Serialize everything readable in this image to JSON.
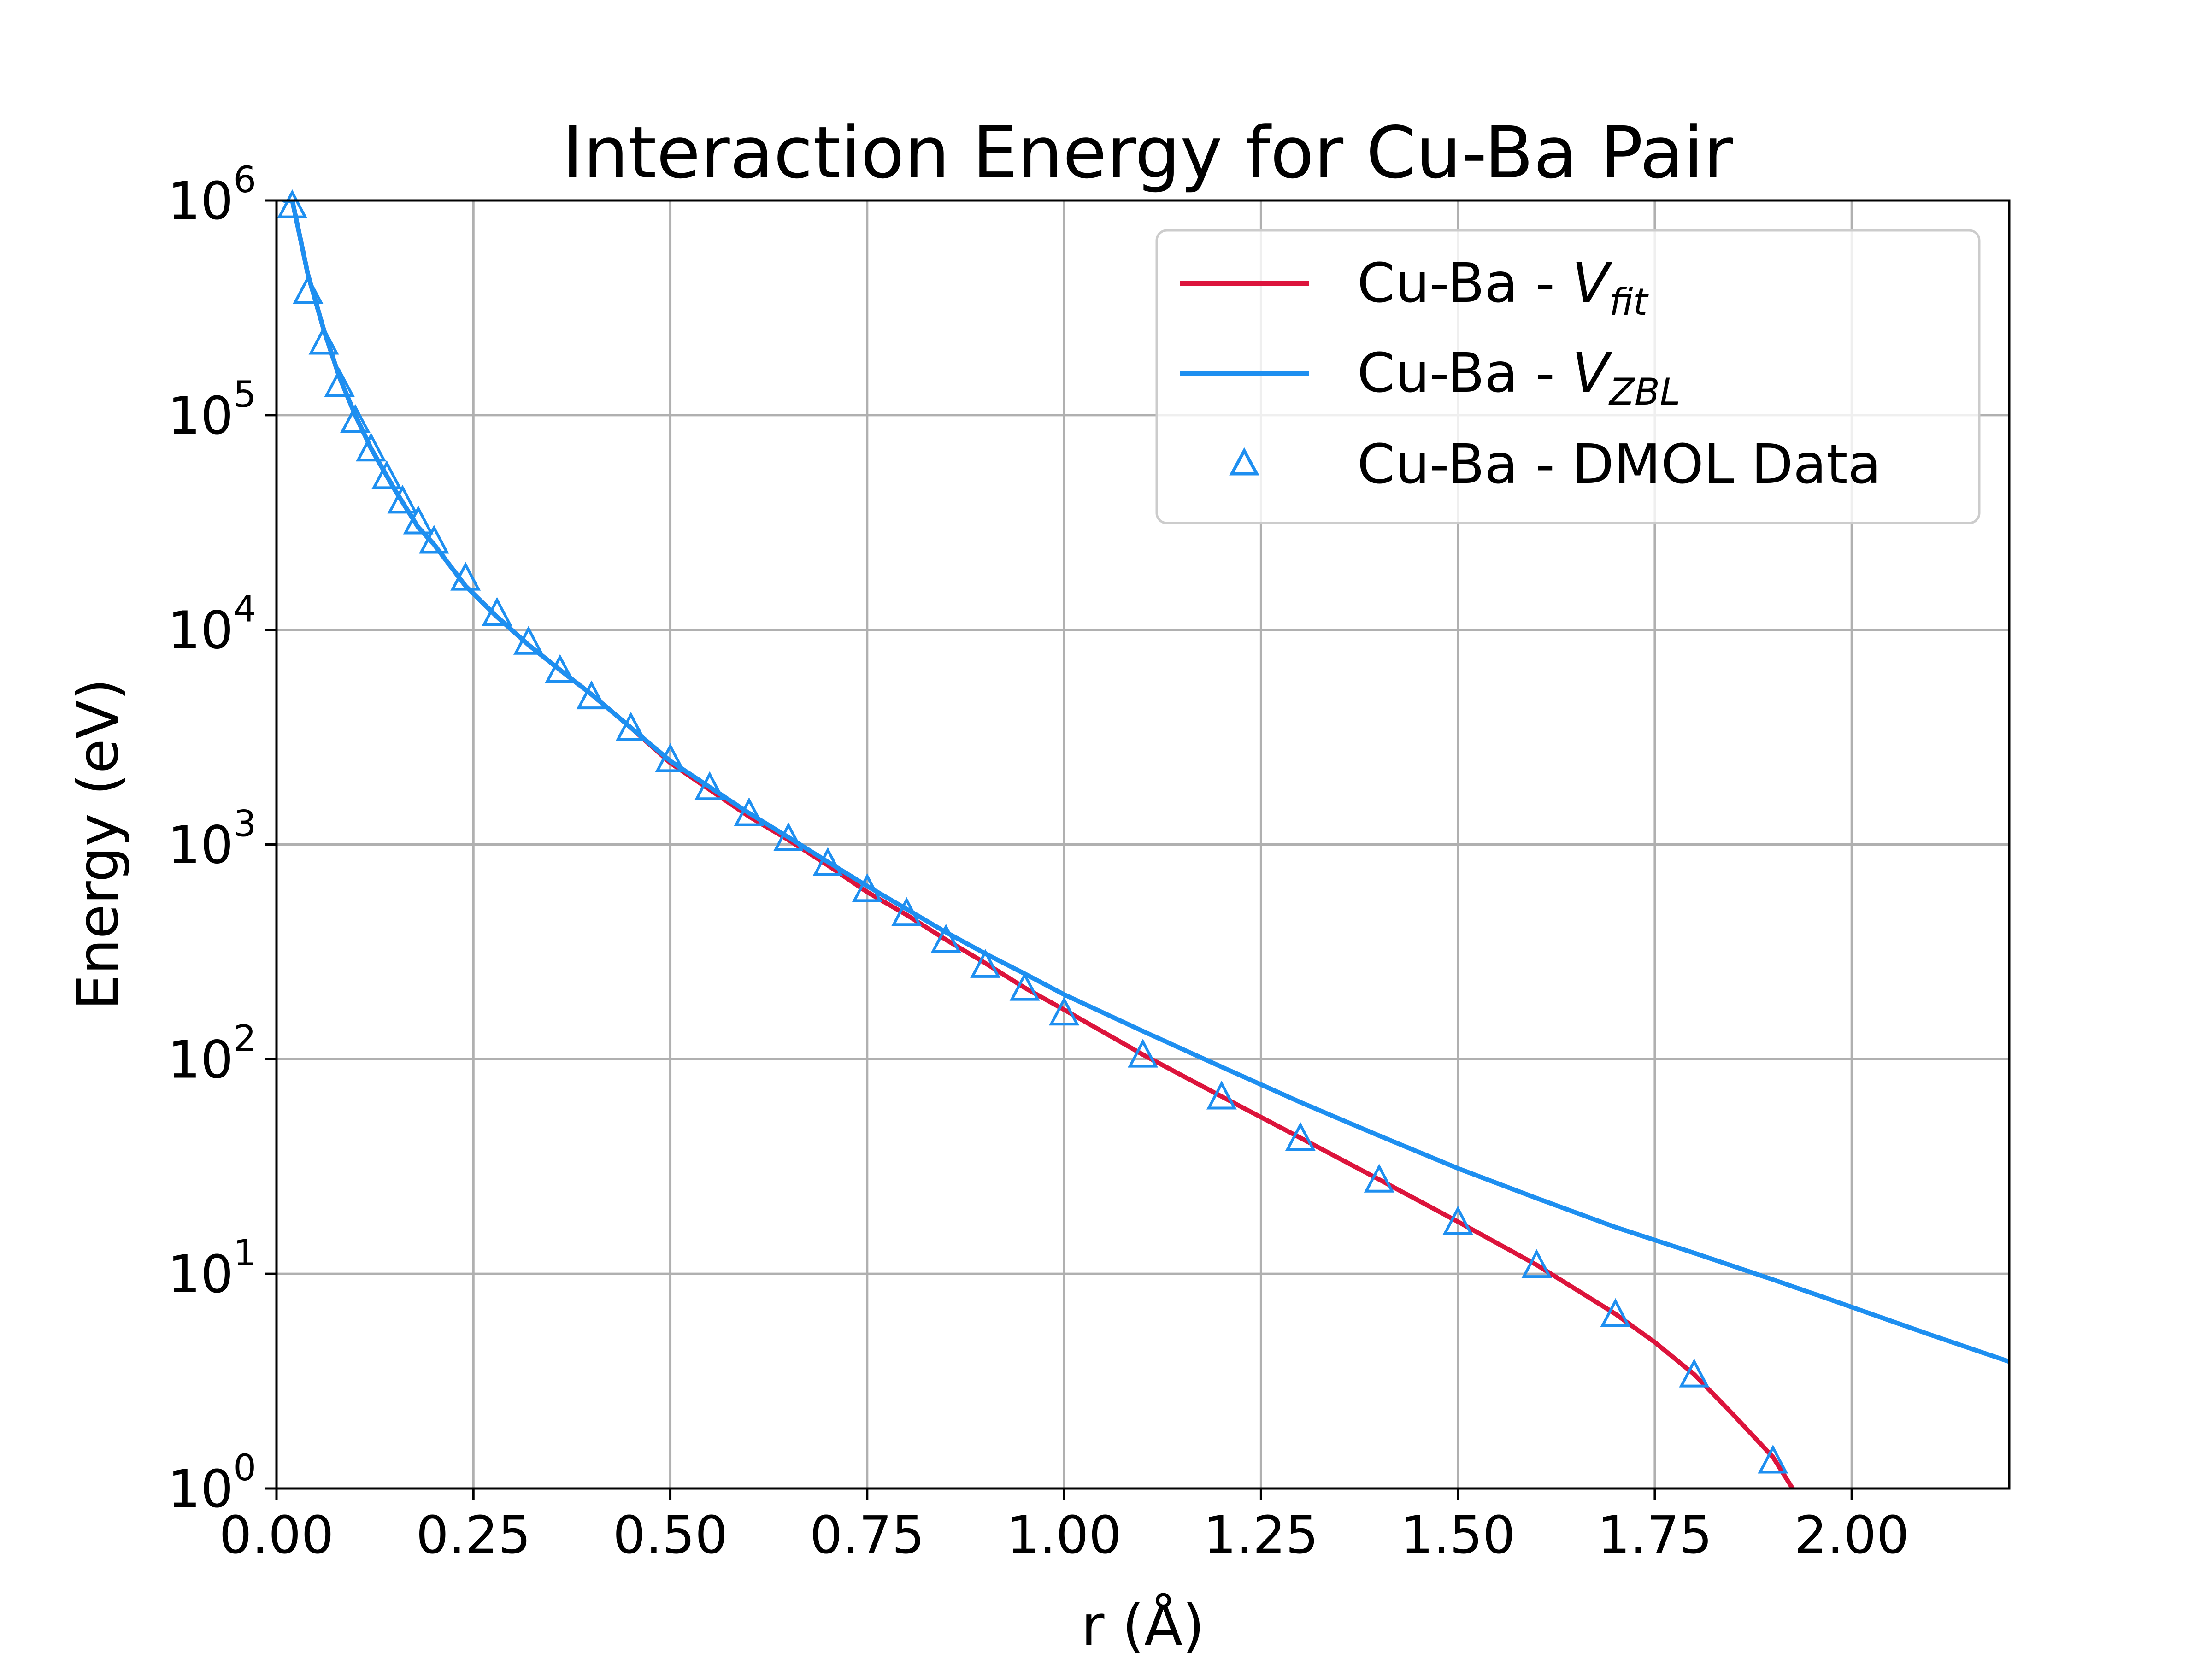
{
  "chart_data": {
    "type": "line",
    "title": "Interaction Energy for Cu-Ba Pair",
    "xlabel": "r (Å)",
    "ylabel": "Energy (eV)",
    "xlim": [
      0.0,
      2.2
    ],
    "ylim_log10": [
      0,
      6
    ],
    "yscale": "log",
    "grid": true,
    "legend_position": "top-right",
    "x_ticks": [
      "0.00",
      "0.25",
      "0.50",
      "0.75",
      "1.00",
      "1.25",
      "1.50",
      "1.75",
      "2.00"
    ],
    "x_tick_values": [
      0.0,
      0.25,
      0.5,
      0.75,
      1.0,
      1.25,
      1.5,
      1.75,
      2.0
    ],
    "y_ticks": [
      {
        "base": "10",
        "exp": "0",
        "value": 1
      },
      {
        "base": "10",
        "exp": "1",
        "value": 10
      },
      {
        "base": "10",
        "exp": "2",
        "value": 100
      },
      {
        "base": "10",
        "exp": "3",
        "value": 1000
      },
      {
        "base": "10",
        "exp": "4",
        "value": 10000
      },
      {
        "base": "10",
        "exp": "5",
        "value": 100000
      },
      {
        "base": "10",
        "exp": "6",
        "value": 1000000
      }
    ],
    "series": [
      {
        "name": "V_fit",
        "legend_prefix": "Cu-Ba - ",
        "legend_symbol": "V",
        "legend_subscript": "fit",
        "color": "#dc143c",
        "style": "line",
        "x": [
          0.02,
          0.04,
          0.06,
          0.08,
          0.1,
          0.12,
          0.15,
          0.18,
          0.2,
          0.24,
          0.28,
          0.32,
          0.36,
          0.4,
          0.45,
          0.5,
          0.55,
          0.6,
          0.65,
          0.7,
          0.75,
          0.8,
          0.85,
          0.9,
          0.95,
          1.0,
          1.1,
          1.2,
          1.3,
          1.4,
          1.5,
          1.6,
          1.7,
          1.75,
          1.8,
          1.85,
          1.9,
          1.925
        ],
        "y": [
          1000000,
          450000,
          250000,
          150000,
          100000,
          70000,
          45000,
          30000,
          25000,
          16000,
          11500,
          8500,
          6500,
          5000,
          3500,
          2400,
          1800,
          1350,
          1050,
          800,
          600,
          470,
          360,
          280,
          215,
          170,
          105,
          67,
          43,
          27.5,
          17.5,
          11,
          6.5,
          4.8,
          3.4,
          2.2,
          1.4,
          1.0
        ]
      },
      {
        "name": "V_ZBL",
        "legend_prefix": "Cu-Ba - ",
        "legend_symbol": "V",
        "legend_subscript": "ZBL",
        "color": "#1e8ff0",
        "style": "line",
        "x": [
          0.01,
          0.02,
          0.04,
          0.06,
          0.08,
          0.1,
          0.12,
          0.15,
          0.18,
          0.2,
          0.24,
          0.28,
          0.32,
          0.36,
          0.4,
          0.45,
          0.5,
          0.55,
          0.6,
          0.65,
          0.7,
          0.75,
          0.8,
          0.85,
          0.9,
          0.95,
          1.0,
          1.1,
          1.2,
          1.3,
          1.4,
          1.5,
          1.6,
          1.7,
          1.8,
          1.9,
          2.0,
          2.1,
          2.2
        ],
        "y": [
          1000000,
          1000000,
          450000,
          250000,
          150000,
          100000,
          70000,
          45000,
          30000,
          25000,
          16000,
          11500,
          8500,
          6500,
          5000,
          3500,
          2450,
          1850,
          1400,
          1080,
          830,
          640,
          500,
          390,
          310,
          250,
          200,
          135,
          92,
          63,
          44,
          31,
          22.5,
          16.5,
          12.5,
          9.4,
          7.0,
          5.2,
          3.9
        ]
      },
      {
        "name": "DMOL Data",
        "legend_prefix": "Cu-Ba - ",
        "legend_text": "DMOL Data",
        "color": "#1e8ff0",
        "style": "triangle-markers",
        "x": [
          0.02,
          0.04,
          0.06,
          0.08,
          0.1,
          0.12,
          0.14,
          0.16,
          0.18,
          0.2,
          0.24,
          0.28,
          0.32,
          0.36,
          0.4,
          0.45,
          0.5,
          0.55,
          0.6,
          0.65,
          0.7,
          0.75,
          0.8,
          0.85,
          0.9,
          0.95,
          1.0,
          1.1,
          1.2,
          1.3,
          1.4,
          1.5,
          1.6,
          1.7,
          1.8,
          1.9
        ],
        "y": [
          950000,
          380000,
          220000,
          140000,
          95000,
          70000,
          52000,
          40000,
          32000,
          26000,
          17500,
          12000,
          8800,
          6500,
          4900,
          3500,
          2500,
          1850,
          1400,
          1070,
          820,
          620,
          480,
          360,
          275,
          215,
          165,
          105,
          67,
          43,
          27.5,
          17.5,
          11,
          6.5,
          3.4,
          1.35
        ]
      }
    ]
  }
}
